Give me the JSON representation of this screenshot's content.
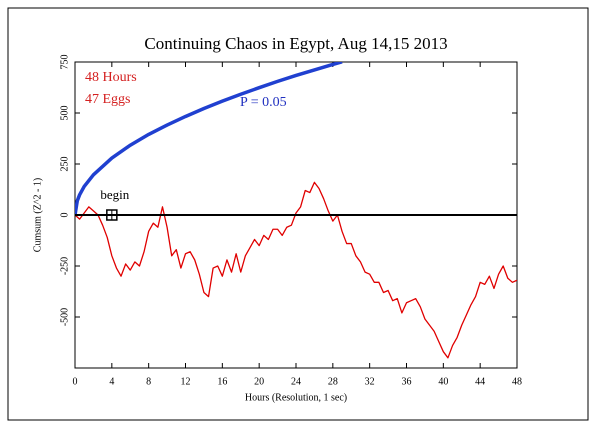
{
  "chart_data": {
    "type": "line",
    "title": "Continuing Chaos in Egypt, Aug 14,15 2013",
    "x_label": "Hours (Resolution, 1 sec)",
    "y_label": "Cumsum (Z^2 - 1)",
    "annotations": [
      {
        "text": "48 Hours",
        "color": "#d42020"
      },
      {
        "text": "47 Eggs",
        "color": "#d42020"
      },
      {
        "text": "P = 0.05",
        "color": "#2030c0"
      }
    ],
    "begin_marker": {
      "label": "begin",
      "x": 4,
      "y": 0
    },
    "reference_line": 0,
    "xlim": [
      0,
      48
    ],
    "xticks": [
      0,
      4,
      8,
      12,
      16,
      20,
      24,
      28,
      32,
      36,
      40,
      44,
      48
    ],
    "ylim": [
      -750,
      750
    ],
    "yticks": [
      -500,
      -250,
      0,
      250,
      500,
      750
    ],
    "series": [
      {
        "name": "P = 0.05 envelope",
        "color": "#2040d0",
        "x": [
          0,
          0.25,
          0.5,
          1,
          2,
          4,
          6,
          8,
          10,
          12,
          14,
          16,
          18,
          20,
          22,
          24,
          26,
          28,
          29
        ],
        "values": [
          0,
          70,
          99,
          140,
          197,
          279,
          342,
          395,
          441,
          483,
          522,
          558,
          592,
          624,
          655,
          684,
          711,
          738,
          751
        ]
      },
      {
        "name": "Cumsum",
        "color": "#e00000",
        "x": [
          0,
          0.5,
          1,
          1.5,
          2,
          2.5,
          3,
          3.5,
          4,
          4.5,
          5,
          5.5,
          6,
          6.5,
          7,
          7.5,
          8,
          8.5,
          9,
          9.5,
          10,
          10.5,
          11,
          11.5,
          12,
          12.5,
          13,
          13.5,
          14,
          14.5,
          15,
          15.5,
          16,
          16.5,
          17,
          17.5,
          18,
          18.5,
          19,
          19.5,
          20,
          20.5,
          21,
          21.5,
          22,
          22.5,
          23,
          23.5,
          24,
          24.5,
          25,
          25.5,
          26,
          26.5,
          27,
          27.5,
          28,
          28.5,
          29,
          29.5,
          30,
          30.5,
          31,
          31.5,
          32,
          32.5,
          33,
          33.5,
          34,
          34.5,
          35,
          35.5,
          36,
          36.5,
          37,
          37.5,
          38,
          38.5,
          39,
          39.5,
          40,
          40.5,
          41,
          41.5,
          42,
          42.5,
          43,
          43.5,
          44,
          44.5,
          45,
          45.5,
          46,
          46.5,
          47,
          47.5,
          48
        ],
        "values": [
          0,
          -20,
          10,
          40,
          20,
          0,
          -50,
          -110,
          -200,
          -260,
          -300,
          -240,
          -270,
          -230,
          -250,
          -180,
          -80,
          -40,
          -60,
          40,
          -60,
          -200,
          -170,
          -260,
          -190,
          -180,
          -220,
          -290,
          -380,
          -400,
          -260,
          -250,
          -300,
          -220,
          -280,
          -190,
          -280,
          -200,
          -160,
          -120,
          -150,
          -100,
          -120,
          -70,
          -70,
          -100,
          -60,
          -50,
          10,
          40,
          120,
          110,
          160,
          130,
          80,
          20,
          -30,
          0,
          -80,
          -140,
          -140,
          -200,
          -230,
          -280,
          -290,
          -330,
          -330,
          -380,
          -370,
          -420,
          -410,
          -480,
          -430,
          -420,
          -410,
          -450,
          -510,
          -540,
          -570,
          -620,
          -670,
          -700,
          -640,
          -600,
          -540,
          -490,
          -440,
          -400,
          -330,
          -340,
          -300,
          -360,
          -290,
          -250,
          -310,
          -330,
          -320
        ]
      }
    ]
  }
}
